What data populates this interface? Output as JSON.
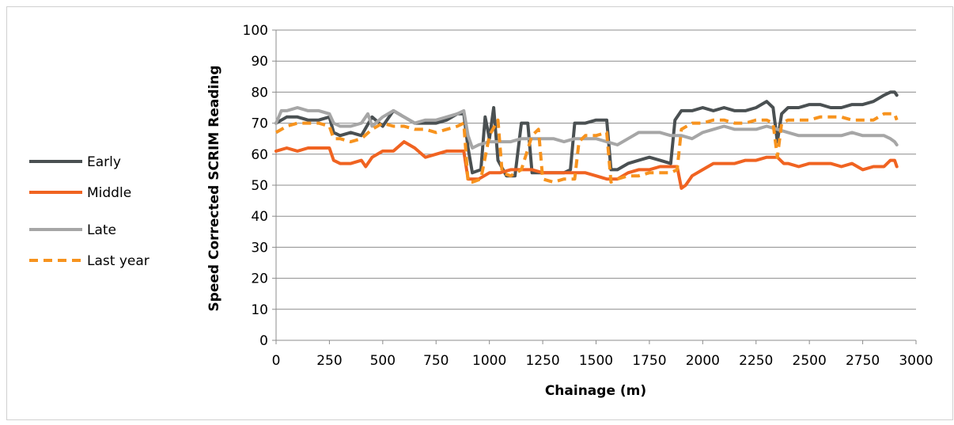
{
  "chart_data": {
    "type": "line",
    "title": "",
    "xlabel": "Chainage (m)",
    "ylabel": "Speed Corrected SCRIM Reading",
    "xlim": [
      0,
      3000
    ],
    "ylim": [
      0,
      100
    ],
    "x_ticks": [
      0,
      250,
      500,
      750,
      1000,
      1250,
      1500,
      1750,
      2000,
      2250,
      2500,
      2750,
      3000
    ],
    "y_ticks": [
      0,
      10,
      20,
      30,
      40,
      50,
      60,
      70,
      80,
      90,
      100
    ],
    "grid": "horizontal",
    "legend": "left",
    "series": [
      {
        "name": "Early",
        "color": "#4a5052",
        "dash": "solid",
        "points": [
          [
            0,
            70
          ],
          [
            50,
            72
          ],
          [
            100,
            72
          ],
          [
            150,
            71
          ],
          [
            200,
            71
          ],
          [
            250,
            72
          ],
          [
            270,
            67
          ],
          [
            300,
            66
          ],
          [
            350,
            67
          ],
          [
            400,
            66
          ],
          [
            450,
            72
          ],
          [
            500,
            69
          ],
          [
            550,
            74
          ],
          [
            600,
            72
          ],
          [
            650,
            70
          ],
          [
            700,
            70
          ],
          [
            750,
            70
          ],
          [
            800,
            71
          ],
          [
            850,
            73
          ],
          [
            880,
            73
          ],
          [
            900,
            62
          ],
          [
            920,
            54
          ],
          [
            960,
            55
          ],
          [
            980,
            72
          ],
          [
            1000,
            65
          ],
          [
            1020,
            75
          ],
          [
            1040,
            58
          ],
          [
            1080,
            53
          ],
          [
            1120,
            53
          ],
          [
            1150,
            70
          ],
          [
            1180,
            70
          ],
          [
            1200,
            54
          ],
          [
            1250,
            54
          ],
          [
            1300,
            54
          ],
          [
            1350,
            54
          ],
          [
            1380,
            55
          ],
          [
            1400,
            70
          ],
          [
            1450,
            70
          ],
          [
            1500,
            71
          ],
          [
            1550,
            71
          ],
          [
            1570,
            55
          ],
          [
            1600,
            55
          ],
          [
            1650,
            57
          ],
          [
            1700,
            58
          ],
          [
            1750,
            59
          ],
          [
            1800,
            58
          ],
          [
            1850,
            57
          ],
          [
            1870,
            71
          ],
          [
            1900,
            74
          ],
          [
            1950,
            74
          ],
          [
            2000,
            75
          ],
          [
            2050,
            74
          ],
          [
            2100,
            75
          ],
          [
            2150,
            74
          ],
          [
            2200,
            74
          ],
          [
            2250,
            75
          ],
          [
            2300,
            77
          ],
          [
            2330,
            75
          ],
          [
            2350,
            64
          ],
          [
            2370,
            73
          ],
          [
            2400,
            75
          ],
          [
            2450,
            75
          ],
          [
            2500,
            76
          ],
          [
            2550,
            76
          ],
          [
            2600,
            75
          ],
          [
            2650,
            75
          ],
          [
            2700,
            76
          ],
          [
            2750,
            76
          ],
          [
            2800,
            77
          ],
          [
            2850,
            79
          ],
          [
            2880,
            80
          ],
          [
            2900,
            80
          ],
          [
            2910,
            79
          ]
        ]
      },
      {
        "name": "Middle",
        "color": "#f06321",
        "dash": "solid",
        "points": [
          [
            0,
            61
          ],
          [
            50,
            62
          ],
          [
            100,
            61
          ],
          [
            150,
            62
          ],
          [
            200,
            62
          ],
          [
            250,
            62
          ],
          [
            270,
            58
          ],
          [
            300,
            57
          ],
          [
            350,
            57
          ],
          [
            400,
            58
          ],
          [
            420,
            56
          ],
          [
            450,
            59
          ],
          [
            500,
            61
          ],
          [
            550,
            61
          ],
          [
            600,
            64
          ],
          [
            650,
            62
          ],
          [
            700,
            59
          ],
          [
            750,
            60
          ],
          [
            800,
            61
          ],
          [
            850,
            61
          ],
          [
            880,
            61
          ],
          [
            900,
            52
          ],
          [
            920,
            52
          ],
          [
            950,
            52
          ],
          [
            1000,
            54
          ],
          [
            1050,
            54
          ],
          [
            1100,
            55
          ],
          [
            1150,
            55
          ],
          [
            1200,
            55
          ],
          [
            1250,
            54
          ],
          [
            1300,
            54
          ],
          [
            1350,
            54
          ],
          [
            1400,
            54
          ],
          [
            1450,
            54
          ],
          [
            1500,
            53
          ],
          [
            1550,
            52
          ],
          [
            1600,
            52
          ],
          [
            1650,
            54
          ],
          [
            1700,
            55
          ],
          [
            1750,
            55
          ],
          [
            1800,
            56
          ],
          [
            1850,
            56
          ],
          [
            1880,
            56
          ],
          [
            1900,
            49
          ],
          [
            1920,
            50
          ],
          [
            1950,
            53
          ],
          [
            2000,
            55
          ],
          [
            2050,
            57
          ],
          [
            2100,
            57
          ],
          [
            2150,
            57
          ],
          [
            2200,
            58
          ],
          [
            2250,
            58
          ],
          [
            2300,
            59
          ],
          [
            2350,
            59
          ],
          [
            2380,
            57
          ],
          [
            2400,
            57
          ],
          [
            2450,
            56
          ],
          [
            2500,
            57
          ],
          [
            2550,
            57
          ],
          [
            2600,
            57
          ],
          [
            2650,
            56
          ],
          [
            2700,
            57
          ],
          [
            2750,
            55
          ],
          [
            2800,
            56
          ],
          [
            2850,
            56
          ],
          [
            2880,
            58
          ],
          [
            2900,
            58
          ],
          [
            2910,
            56
          ]
        ]
      },
      {
        "name": "Late",
        "color": "#a6a6a6",
        "dash": "solid",
        "points": [
          [
            0,
            70
          ],
          [
            25,
            74
          ],
          [
            50,
            74
          ],
          [
            100,
            75
          ],
          [
            150,
            74
          ],
          [
            200,
            74
          ],
          [
            250,
            73
          ],
          [
            270,
            70
          ],
          [
            300,
            69
          ],
          [
            350,
            69
          ],
          [
            400,
            70
          ],
          [
            430,
            73
          ],
          [
            450,
            69
          ],
          [
            500,
            72
          ],
          [
            550,
            74
          ],
          [
            600,
            72
          ],
          [
            650,
            70
          ],
          [
            700,
            71
          ],
          [
            750,
            71
          ],
          [
            800,
            72
          ],
          [
            850,
            73
          ],
          [
            880,
            74
          ],
          [
            900,
            66
          ],
          [
            920,
            62
          ],
          [
            950,
            63
          ],
          [
            1000,
            64
          ],
          [
            1050,
            64
          ],
          [
            1100,
            64
          ],
          [
            1150,
            65
          ],
          [
            1200,
            65
          ],
          [
            1250,
            65
          ],
          [
            1300,
            65
          ],
          [
            1350,
            64
          ],
          [
            1400,
            65
          ],
          [
            1450,
            65
          ],
          [
            1500,
            65
          ],
          [
            1550,
            64
          ],
          [
            1600,
            63
          ],
          [
            1650,
            65
          ],
          [
            1700,
            67
          ],
          [
            1750,
            67
          ],
          [
            1800,
            67
          ],
          [
            1850,
            66
          ],
          [
            1880,
            66
          ],
          [
            1900,
            66
          ],
          [
            1950,
            65
          ],
          [
            2000,
            67
          ],
          [
            2050,
            68
          ],
          [
            2100,
            69
          ],
          [
            2150,
            68
          ],
          [
            2200,
            68
          ],
          [
            2250,
            68
          ],
          [
            2300,
            69
          ],
          [
            2350,
            68
          ],
          [
            2400,
            67
          ],
          [
            2450,
            66
          ],
          [
            2500,
            66
          ],
          [
            2550,
            66
          ],
          [
            2600,
            66
          ],
          [
            2650,
            66
          ],
          [
            2700,
            67
          ],
          [
            2750,
            66
          ],
          [
            2800,
            66
          ],
          [
            2850,
            66
          ],
          [
            2880,
            65
          ],
          [
            2900,
            64
          ],
          [
            2910,
            63
          ]
        ]
      },
      {
        "name": "Last year",
        "color": "#f7931e",
        "dash": "dashed",
        "points": [
          [
            0,
            67
          ],
          [
            50,
            69
          ],
          [
            100,
            70
          ],
          [
            150,
            70
          ],
          [
            200,
            70
          ],
          [
            250,
            69
          ],
          [
            270,
            65
          ],
          [
            300,
            65
          ],
          [
            350,
            64
          ],
          [
            400,
            65
          ],
          [
            450,
            68
          ],
          [
            500,
            70
          ],
          [
            550,
            69
          ],
          [
            600,
            69
          ],
          [
            650,
            68
          ],
          [
            700,
            68
          ],
          [
            750,
            67
          ],
          [
            800,
            68
          ],
          [
            850,
            69
          ],
          [
            880,
            70
          ],
          [
            900,
            51
          ],
          [
            920,
            51
          ],
          [
            960,
            52
          ],
          [
            1000,
            66
          ],
          [
            1040,
            71
          ],
          [
            1060,
            54
          ],
          [
            1100,
            53
          ],
          [
            1150,
            55
          ],
          [
            1200,
            66
          ],
          [
            1230,
            68
          ],
          [
            1250,
            52
          ],
          [
            1300,
            51
          ],
          [
            1350,
            52
          ],
          [
            1400,
            52
          ],
          [
            1420,
            64
          ],
          [
            1450,
            66
          ],
          [
            1500,
            66
          ],
          [
            1550,
            67
          ],
          [
            1570,
            51
          ],
          [
            1600,
            52
          ],
          [
            1650,
            53
          ],
          [
            1700,
            53
          ],
          [
            1750,
            54
          ],
          [
            1800,
            54
          ],
          [
            1850,
            54
          ],
          [
            1880,
            55
          ],
          [
            1900,
            68
          ],
          [
            1950,
            70
          ],
          [
            2000,
            70
          ],
          [
            2050,
            71
          ],
          [
            2100,
            71
          ],
          [
            2150,
            70
          ],
          [
            2200,
            70
          ],
          [
            2250,
            71
          ],
          [
            2300,
            71
          ],
          [
            2330,
            70
          ],
          [
            2350,
            59
          ],
          [
            2370,
            70
          ],
          [
            2400,
            71
          ],
          [
            2450,
            71
          ],
          [
            2500,
            71
          ],
          [
            2550,
            72
          ],
          [
            2600,
            72
          ],
          [
            2650,
            72
          ],
          [
            2700,
            71
          ],
          [
            2750,
            71
          ],
          [
            2800,
            71
          ],
          [
            2850,
            73
          ],
          [
            2880,
            73
          ],
          [
            2900,
            73
          ],
          [
            2910,
            71
          ]
        ]
      }
    ]
  }
}
